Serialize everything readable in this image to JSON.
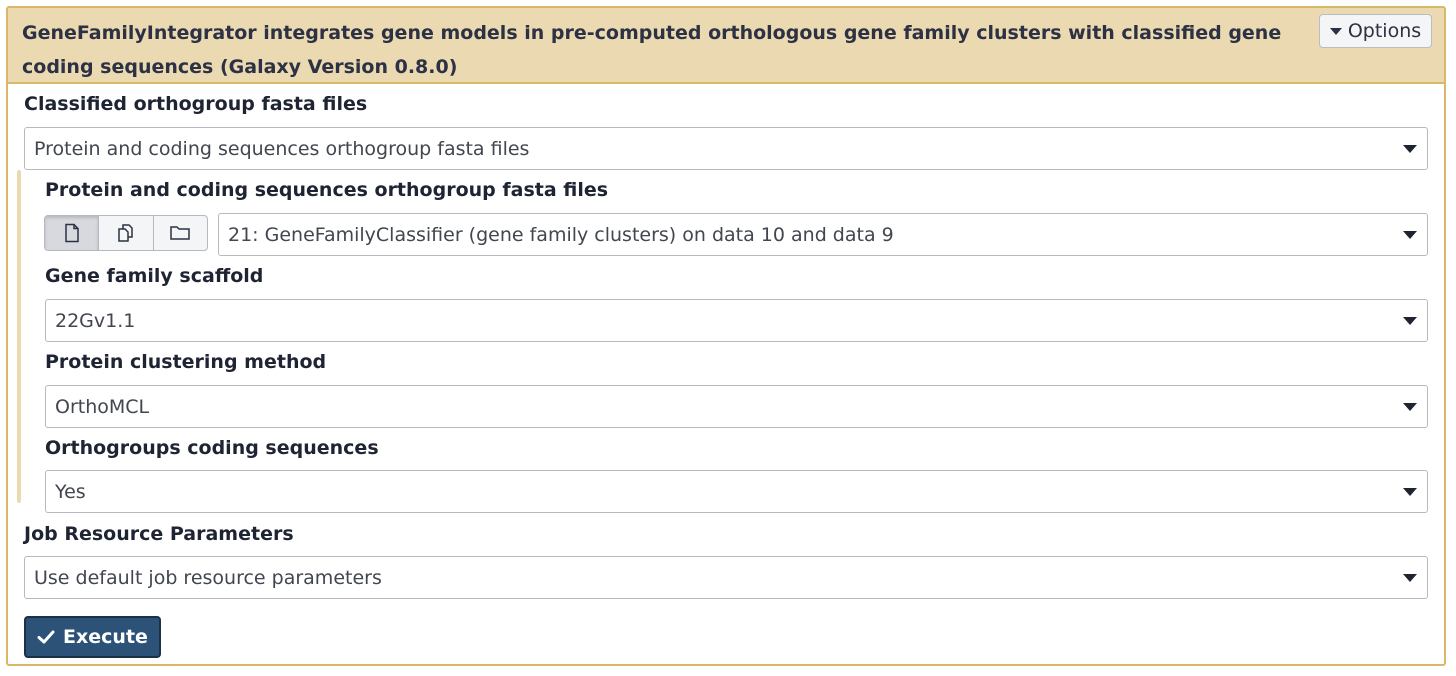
{
  "tool": {
    "title": "GeneFamilyIntegrator integrates gene models in pre-computed orthologous gene family clusters with classified gene coding sequences (Galaxy Version 0.8.0)",
    "options_label": "Options"
  },
  "form": {
    "classified_orthogroup": {
      "label": "Classified orthogroup fasta files",
      "value": "Protein and coding sequences orthogroup fasta files"
    },
    "protein_cds_files": {
      "label": "Protein and coding sequences orthogroup fasta files",
      "value": "21: GeneFamilyClassifier (gene family clusters) on data 10 and data 9",
      "input_modes": [
        "single-dataset-icon",
        "multiple-datasets-icon",
        "dataset-collection-icon"
      ],
      "active_mode": "single-dataset-icon"
    },
    "gene_family_scaffold": {
      "label": "Gene family scaffold",
      "value": "22Gv1.1"
    },
    "protein_clustering_method": {
      "label": "Protein clustering method",
      "value": "OrthoMCL"
    },
    "orthogroups_cds": {
      "label": "Orthogroups coding sequences",
      "value": "Yes"
    },
    "job_resource": {
      "label": "Job Resource Parameters",
      "value": "Use default job resource parameters"
    }
  },
  "actions": {
    "execute_label": "Execute"
  },
  "colors": {
    "header_bg": "#ebd9b2",
    "border_gold": "#d9b86a",
    "execute_bg": "#2c5278"
  }
}
